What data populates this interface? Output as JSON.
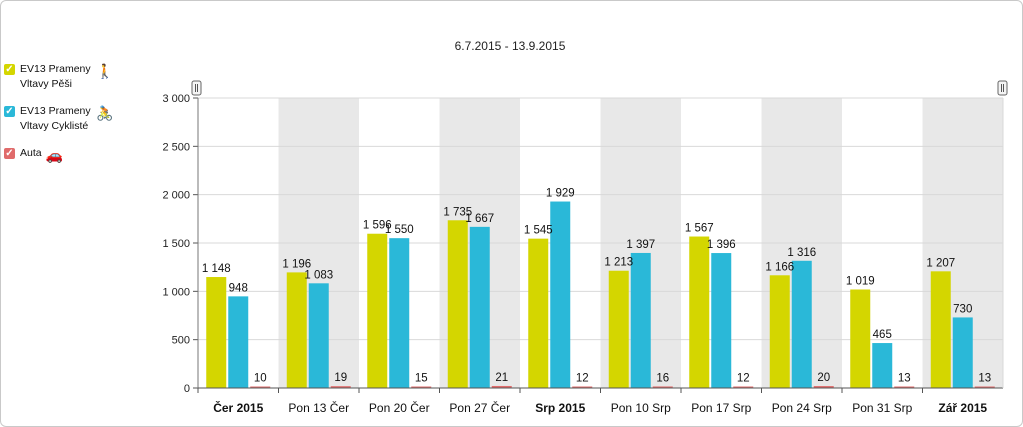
{
  "legend": {
    "items": [
      {
        "label": "EV13 Prameny Vltavy Pěši",
        "color": "#d4d600",
        "icon": "pedestrian-icon",
        "glyph": "🚶"
      },
      {
        "label": "EV13 Prameny Vltavy Cyklisté",
        "color": "#2ab8d8",
        "icon": "bicycle-icon",
        "glyph": "🚴"
      },
      {
        "label": "Auta",
        "color": "#e06b6b",
        "icon": "car-icon",
        "glyph": "🚗"
      }
    ]
  },
  "chart_data": {
    "type": "bar",
    "title": "6.7.2015 - 13.9.2015",
    "categories": [
      "Čer 2015",
      "Pon 13 Čer",
      "Pon 20 Čer",
      "Pon 27 Čer",
      "Srp 2015",
      "Pon 10 Srp",
      "Pon 17 Srp",
      "Pon 24 Srp",
      "Pon 31 Srp",
      "Zář 2015"
    ],
    "bold_categories": [
      "Čer 2015",
      "Srp 2015",
      "Zář 2015"
    ],
    "series": [
      {
        "name": "EV13 Prameny Vltavy Pěši",
        "color": "#d4d600",
        "values": [
          1148,
          1196,
          1596,
          1735,
          1545,
          1213,
          1567,
          1166,
          1019,
          1207
        ],
        "labels": [
          "1 148",
          "1 196",
          "1 596",
          "1 735",
          "1 545",
          "1 213",
          "1 567",
          "1 166",
          "1 019",
          "1 207"
        ]
      },
      {
        "name": "EV13 Prameny Vltavy Cyklisté",
        "color": "#2ab8d8",
        "values": [
          948,
          1083,
          1550,
          1667,
          1929,
          1397,
          1396,
          1316,
          465,
          730
        ],
        "labels": [
          "948",
          "1 083",
          "1 550",
          "1 667",
          "1 929",
          "1 397",
          "1 396",
          "1 316",
          "465",
          "730"
        ]
      },
      {
        "name": "Auta",
        "color": "#e06b6b",
        "values": [
          10,
          19,
          15,
          21,
          12,
          16,
          12,
          20,
          13,
          13
        ],
        "labels": [
          "10",
          "19",
          "15",
          "21",
          "12",
          "16",
          "12",
          "20",
          "13",
          "13"
        ]
      }
    ],
    "ylim": [
      0,
      3000
    ],
    "yticks": [
      0,
      500,
      1000,
      1500,
      2000,
      2500,
      3000
    ],
    "ytick_labels": [
      "0",
      "500",
      "1 000",
      "1 500",
      "2 000",
      "2 500",
      "3 000"
    ],
    "grid": true,
    "alternate_band_color": "#e8e8e8"
  }
}
